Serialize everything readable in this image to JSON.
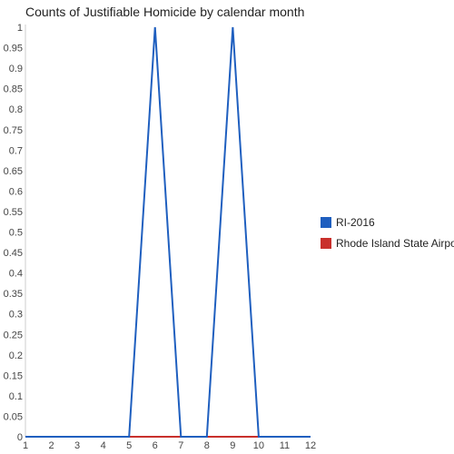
{
  "chart_data": {
    "type": "line",
    "title": "Counts of Justifiable Homicide by calendar month",
    "xlabel": "",
    "ylabel": "",
    "x": [
      1,
      2,
      3,
      4,
      5,
      6,
      7,
      8,
      9,
      10,
      11,
      12
    ],
    "x_ticks": [
      "1",
      "2",
      "3",
      "4",
      "5",
      "6",
      "7",
      "8",
      "9",
      "10",
      "11",
      "12"
    ],
    "xlim": [
      1,
      12
    ],
    "ylim": [
      0,
      1
    ],
    "y_ticks": [
      "0",
      "0.05",
      "0.1",
      "0.15",
      "0.2",
      "0.25",
      "0.3",
      "0.35",
      "0.4",
      "0.45",
      "0.5",
      "0.55",
      "0.6",
      "0.65",
      "0.7",
      "0.75",
      "0.8",
      "0.85",
      "0.9",
      "0.95",
      "1"
    ],
    "grid": false,
    "legend_position": "right",
    "series": [
      {
        "name": "RI-2016",
        "color": "#1f5fbf",
        "values": [
          0,
          0,
          0,
          0,
          0,
          1,
          0,
          0,
          1,
          0,
          0,
          0
        ]
      },
      {
        "name": "Rhode Island State Airport",
        "color": "#c9302c",
        "values": [
          0,
          0,
          0,
          0,
          0,
          0,
          0,
          0,
          0,
          0,
          0,
          0
        ]
      }
    ]
  }
}
